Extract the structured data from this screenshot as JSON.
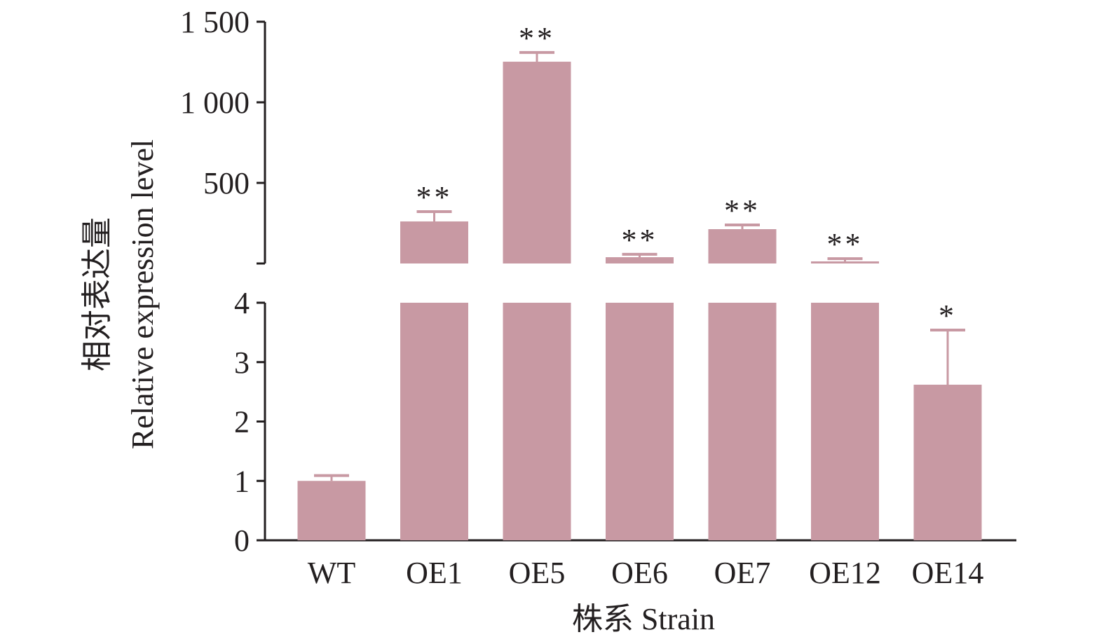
{
  "chart_data": {
    "type": "bar",
    "broken_axis": true,
    "categories": [
      "WT",
      "OE1",
      "OE5",
      "OE6",
      "OE7",
      "OE12",
      "OE14"
    ],
    "values": [
      1.0,
      261,
      1252,
      39,
      213,
      13,
      2.62
    ],
    "error_upper": [
      1.09,
      322,
      1309,
      57,
      239,
      30,
      3.54
    ],
    "significance": [
      "",
      "**",
      "**",
      "**",
      "**",
      "**",
      "*"
    ],
    "xlabel": "株系 Strain",
    "ylabel_cn": "相对表达量",
    "ylabel_en": "Relative expression level",
    "lower_axis": {
      "ylim": [
        0,
        4
      ],
      "ticks": [
        0,
        1,
        2,
        3,
        4
      ],
      "tick_labels": [
        "0",
        "1",
        "2",
        "3",
        "4"
      ]
    },
    "upper_axis": {
      "ylim": [
        0,
        1500
      ],
      "ticks": [
        0,
        500,
        1000,
        1500
      ],
      "tick_labels": [
        "",
        "500",
        "1 000",
        "1 500"
      ]
    },
    "bar_color": "#c899a3",
    "error_color": "#c899a3",
    "grid": false,
    "legend": "none"
  }
}
